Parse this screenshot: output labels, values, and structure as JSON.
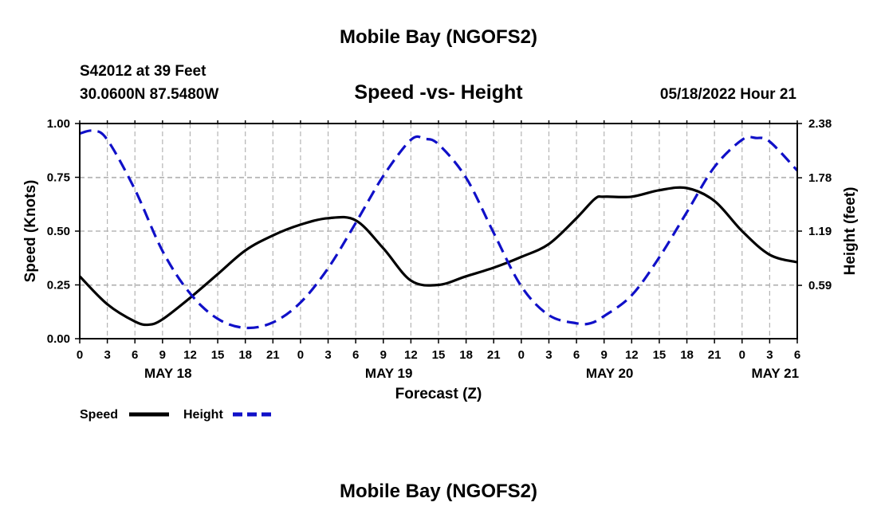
{
  "header": {
    "title": "Mobile Bay (NGOFS2)",
    "station": "S42012 at 39 Feet",
    "coords": "30.0600N  87.5480W",
    "datetime": "05/18/2022 Hour 21",
    "footer_title": "Mobile Bay (NGOFS2)"
  },
  "colors": {
    "speed": "#000000",
    "height": "#1010c8",
    "grid": "#b4b4b4"
  },
  "legend": {
    "speed_label": "Speed",
    "height_label": "Height"
  },
  "chart_data": {
    "type": "line",
    "title": "Speed -vs- Height",
    "xlabel": "Forecast (Z)",
    "ylabel": "Speed (Knots)",
    "y2label": "Height (feet)",
    "x_unit": "hours since 05/18 00Z",
    "xlim": [
      0,
      78
    ],
    "ylim": [
      0,
      1.0
    ],
    "y2lim": [
      0,
      2.38
    ],
    "x_ticks": [
      0,
      3,
      6,
      9,
      12,
      15,
      18,
      21,
      24,
      27,
      30,
      33,
      36,
      39,
      42,
      45,
      48,
      51,
      54,
      57,
      60,
      63,
      66,
      69,
      72,
      75,
      78
    ],
    "x_tick_labels": [
      "0",
      "3",
      "6",
      "9",
      "12",
      "15",
      "18",
      "21",
      "0",
      "3",
      "6",
      "9",
      "12",
      "15",
      "18",
      "21",
      "0",
      "3",
      "6",
      "9",
      "12",
      "15",
      "18",
      "21",
      "0",
      "3",
      "6"
    ],
    "y_ticks": [
      0,
      0.25,
      0.5,
      0.75,
      1.0
    ],
    "y_tick_labels": [
      "0.00",
      "0.25",
      "0.50",
      "0.75",
      "1.00"
    ],
    "y2_ticks": [
      0.59,
      1.19,
      1.78,
      2.38
    ],
    "y2_tick_labels": [
      "0.59",
      "1.19",
      "1.78",
      "2.38"
    ],
    "day_labels": [
      {
        "x": 9.6,
        "label": "MAY 18"
      },
      {
        "x": 33.6,
        "label": "MAY 19"
      },
      {
        "x": 57.6,
        "label": "MAY 20"
      },
      {
        "x": 75.6,
        "label": "MAY 21"
      }
    ],
    "grid": true,
    "series": [
      {
        "name": "Speed",
        "axis": "left",
        "style": "solid",
        "x": [
          0,
          3,
          6,
          7.5,
          9,
          12,
          15,
          18,
          21,
          24,
          27,
          30,
          33,
          36,
          39,
          42,
          45,
          48,
          51,
          54,
          56,
          57,
          60,
          63,
          66,
          69,
          72,
          75,
          78
        ],
        "y": [
          0.29,
          0.16,
          0.08,
          0.065,
          0.09,
          0.19,
          0.3,
          0.41,
          0.48,
          0.53,
          0.56,
          0.55,
          0.42,
          0.27,
          0.25,
          0.29,
          0.33,
          0.38,
          0.44,
          0.56,
          0.65,
          0.66,
          0.66,
          0.69,
          0.7,
          0.64,
          0.5,
          0.39,
          0.355
        ]
      },
      {
        "name": "Height",
        "axis": "right",
        "style": "dashed",
        "x": [
          0,
          1.5,
          3,
          6,
          9,
          12,
          15,
          18,
          21,
          24,
          27,
          30,
          33,
          36,
          37.5,
          39,
          42,
          45,
          48,
          51,
          54,
          55.5,
          57,
          60,
          63,
          66,
          69,
          72,
          73.5,
          75,
          78
        ],
        "y": [
          2.27,
          2.3,
          2.2,
          1.65,
          0.97,
          0.5,
          0.22,
          0.12,
          0.18,
          0.4,
          0.78,
          1.28,
          1.8,
          2.2,
          2.21,
          2.15,
          1.78,
          1.17,
          0.58,
          0.26,
          0.17,
          0.17,
          0.25,
          0.48,
          0.9,
          1.4,
          1.9,
          2.2,
          2.22,
          2.18,
          1.86
        ]
      }
    ]
  }
}
